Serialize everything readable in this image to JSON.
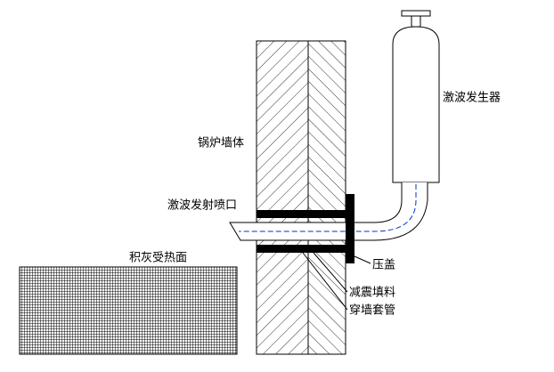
{
  "labels": {
    "generator": "激波发生器",
    "wall": "锅炉墙体",
    "nozzle": "激波发射喷口",
    "surface": "积灰受热面",
    "gland": "压盖",
    "filler": "减震填料",
    "sleeve": "穿墙套管"
  }
}
